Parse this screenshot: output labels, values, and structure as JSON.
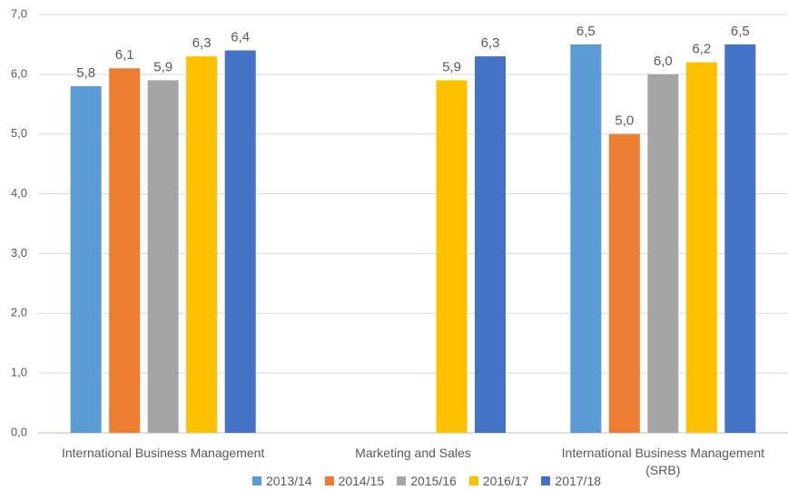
{
  "chart_data": {
    "type": "bar",
    "categories": [
      "International Business Management",
      "Marketing and Sales",
      "International Business Management (SRB)"
    ],
    "series": [
      {
        "name": "2013/14",
        "color": "#5b9bd5",
        "values": [
          5.8,
          null,
          6.5
        ],
        "value_labels": [
          "5,8",
          null,
          "6,5"
        ]
      },
      {
        "name": "2014/15",
        "color": "#ed7d31",
        "values": [
          6.1,
          null,
          5.0
        ],
        "value_labels": [
          "6,1",
          null,
          "5,0"
        ]
      },
      {
        "name": "2015/16",
        "color": "#a5a5a5",
        "values": [
          5.9,
          null,
          6.0
        ],
        "value_labels": [
          "5,9",
          null,
          "6,0"
        ]
      },
      {
        "name": "2016/17",
        "color": "#ffc000",
        "values": [
          6.3,
          5.9,
          6.2
        ],
        "value_labels": [
          "6,3",
          "5,9",
          "6,2"
        ]
      },
      {
        "name": "2017/18",
        "color": "#4472c4",
        "values": [
          6.4,
          6.3,
          6.5
        ],
        "value_labels": [
          "6,4",
          "6,3",
          "6,5"
        ]
      }
    ],
    "ylim": [
      0,
      7
    ],
    "yticks": [
      {
        "value": 0,
        "label": "0,0"
      },
      {
        "value": 1,
        "label": "1,0"
      },
      {
        "value": 2,
        "label": "2,0"
      },
      {
        "value": 3,
        "label": "3,0"
      },
      {
        "value": 4,
        "label": "4,0"
      },
      {
        "value": 5,
        "label": "5,0"
      },
      {
        "value": 6,
        "label": "6,0"
      },
      {
        "value": 7,
        "label": "7,0"
      }
    ],
    "grid": true,
    "legend": "bottom"
  }
}
